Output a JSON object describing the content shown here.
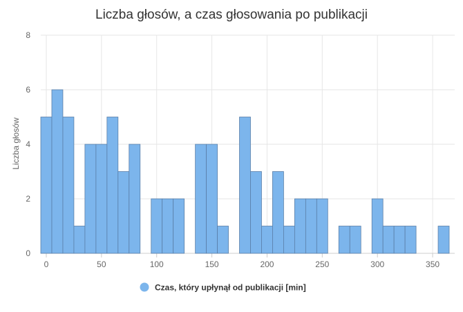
{
  "chart_data": {
    "type": "bar",
    "title": "Liczba głosów, a czas głosowania po publikacji",
    "ylabel": "Liczba głosów",
    "xlabel": "",
    "xlim": [
      -5,
      370
    ],
    "ylim": [
      0,
      8
    ],
    "x_ticks": [
      0,
      50,
      100,
      150,
      200,
      250,
      300,
      350
    ],
    "y_ticks": [
      0,
      2,
      4,
      6,
      8
    ],
    "bin_width": 10,
    "grid": true,
    "legend_position": "bottom",
    "series": [
      {
        "name": "Czas, który upłynął od publikacji [min]",
        "color": "#7cb5ec",
        "bins": [
          {
            "x": 0,
            "value": 5
          },
          {
            "x": 10,
            "value": 6
          },
          {
            "x": 20,
            "value": 5
          },
          {
            "x": 30,
            "value": 1
          },
          {
            "x": 40,
            "value": 4
          },
          {
            "x": 50,
            "value": 4
          },
          {
            "x": 60,
            "value": 5
          },
          {
            "x": 70,
            "value": 3
          },
          {
            "x": 80,
            "value": 4
          },
          {
            "x": 100,
            "value": 2
          },
          {
            "x": 110,
            "value": 2
          },
          {
            "x": 120,
            "value": 2
          },
          {
            "x": 140,
            "value": 4
          },
          {
            "x": 150,
            "value": 4
          },
          {
            "x": 160,
            "value": 1
          },
          {
            "x": 180,
            "value": 5
          },
          {
            "x": 190,
            "value": 3
          },
          {
            "x": 200,
            "value": 1
          },
          {
            "x": 210,
            "value": 3
          },
          {
            "x": 220,
            "value": 1
          },
          {
            "x": 230,
            "value": 2
          },
          {
            "x": 240,
            "value": 2
          },
          {
            "x": 250,
            "value": 2
          },
          {
            "x": 270,
            "value": 1
          },
          {
            "x": 280,
            "value": 1
          },
          {
            "x": 300,
            "value": 2
          },
          {
            "x": 310,
            "value": 1
          },
          {
            "x": 320,
            "value": 1
          },
          {
            "x": 330,
            "value": 1
          },
          {
            "x": 360,
            "value": 1
          }
        ]
      }
    ]
  }
}
